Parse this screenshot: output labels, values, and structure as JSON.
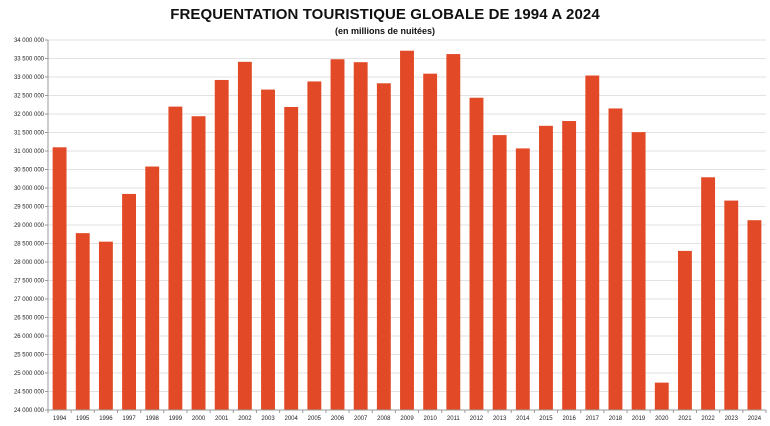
{
  "chart_data": {
    "type": "bar",
    "title": "FREQUENTATION TOURISTIQUE GLOBALE DE 1994 A 2024",
    "subtitle": "(en millions de nuitées)",
    "xlabel": "",
    "ylabel": "",
    "ylim": [
      24000000,
      34000000
    ],
    "ytick_step": 500000,
    "ytick_labels": [
      "24 000 000",
      "24 500 000",
      "25 000 000",
      "25 500 000",
      "26 000 000",
      "26 500 000",
      "27 000 000",
      "27 500 000",
      "28 000 000",
      "28 500 000",
      "29 000 000",
      "29 500 000",
      "30 000 000",
      "30 500 000",
      "31 000 000",
      "31 500 000",
      "32 000 000",
      "32 500 000",
      "33 000 000",
      "33 500 000",
      "34 000 000"
    ],
    "grid": true,
    "legend": "none",
    "bar_color": "#e24a27",
    "categories": [
      "1994",
      "1995",
      "1996",
      "1997",
      "1998",
      "1999",
      "2000",
      "2001",
      "2002",
      "2003",
      "2004",
      "2005",
      "2006",
      "2007",
      "2008",
      "2009",
      "2010",
      "2011",
      "2012",
      "2013",
      "2014",
      "2015",
      "2016",
      "2017",
      "2018",
      "2019",
      "2020",
      "2021",
      "2022",
      "2023",
      "2024"
    ],
    "values": [
      31100000,
      28780000,
      28550000,
      29840000,
      30580000,
      32200000,
      31940000,
      32920000,
      33410000,
      32660000,
      32190000,
      32880000,
      33480000,
      33400000,
      32830000,
      33710000,
      33090000,
      33620000,
      32440000,
      31430000,
      31070000,
      31680000,
      31810000,
      33040000,
      32150000,
      31510000,
      24740000,
      28300000,
      30290000,
      29660000,
      29130000
    ]
  }
}
